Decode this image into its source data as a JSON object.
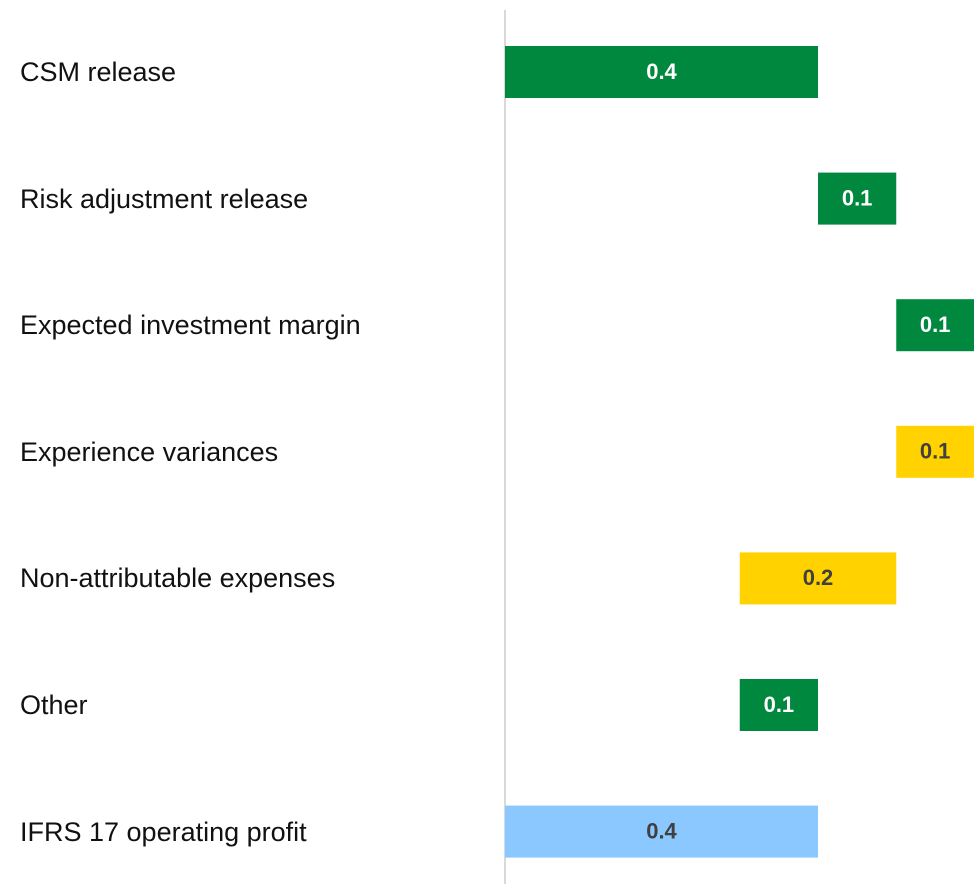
{
  "chart_data": {
    "type": "waterfall",
    "categories": [
      "CSM release",
      "Risk adjustment release",
      "Expected investment margin",
      "Experience variances",
      "Non-attributable expenses",
      "Other",
      "IFRS 17 operating profit"
    ],
    "values": [
      0.4,
      0.1,
      0.1,
      -0.1,
      -0.2,
      0.1,
      0.4
    ],
    "value_labels": [
      "0.4",
      "0.1",
      "0.1",
      "0.1",
      "0.2",
      "0.1",
      "0.4"
    ],
    "totals": [
      false,
      false,
      false,
      false,
      false,
      false,
      true
    ],
    "colors": [
      "#00883f",
      "#00883f",
      "#00883f",
      "#ffd200",
      "#ffd200",
      "#00883f",
      "#8ac8ff"
    ],
    "label_colors": [
      "#ffffff",
      "#ffffff",
      "#ffffff",
      "#404040",
      "#404040",
      "#ffffff",
      "#404040"
    ],
    "xlim": [
      0,
      0.6
    ]
  }
}
